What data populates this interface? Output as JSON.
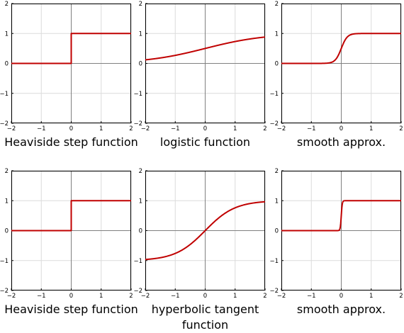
{
  "figure": {
    "colors": {
      "curve": "#c00000",
      "grid": "#dcdcdc",
      "axis": "#808080",
      "frame": "#000000"
    }
  },
  "chart_data": [
    {
      "type": "line",
      "caption": "Heaviside step function",
      "function": "heaviside",
      "xlim": [
        -2,
        2
      ],
      "ylim": [
        -2,
        2
      ],
      "xticks": [
        -2,
        -1,
        0,
        1,
        2
      ],
      "yticks": [
        -2,
        -1,
        0,
        1,
        2
      ],
      "xtick_labels": [
        "−2",
        "−1",
        "0",
        "1",
        "2"
      ],
      "ytick_labels": [
        "−2",
        "−1",
        "0",
        "1",
        "2"
      ],
      "grid": true,
      "series": [
        {
          "x": [
            -2,
            0,
            0,
            2
          ],
          "y": [
            0,
            0,
            1,
            1
          ]
        }
      ]
    },
    {
      "type": "line",
      "caption": "logistic function",
      "function": "logistic",
      "xlim": [
        -2,
        2
      ],
      "ylim": [
        -2,
        2
      ],
      "xticks": [
        -2,
        -1,
        0,
        1,
        2
      ],
      "yticks": [
        -2,
        -1,
        0,
        1,
        2
      ],
      "xtick_labels": [
        "−2",
        "−1",
        "0",
        "1",
        "2"
      ],
      "ytick_labels": [
        "−2",
        "−1",
        "0",
        "1",
        "2"
      ],
      "grid": true,
      "series": [
        {
          "x": [
            -2,
            -1,
            0,
            1,
            2
          ],
          "y": [
            0.12,
            0.27,
            0.5,
            0.73,
            0.88
          ]
        }
      ]
    },
    {
      "type": "line",
      "caption": "smooth approx.",
      "function": "logistic_steep",
      "steepness": 10,
      "xlim": [
        -2,
        2
      ],
      "ylim": [
        -2,
        2
      ],
      "xticks": [
        -2,
        -1,
        0,
        1,
        2
      ],
      "yticks": [
        -2,
        -1,
        0,
        1,
        2
      ],
      "xtick_labels": [
        "−2",
        "−1",
        "0",
        "1",
        "2"
      ],
      "ytick_labels": [
        "−2",
        "−1",
        "0",
        "1",
        "2"
      ],
      "grid": true,
      "series": [
        {
          "x": [
            -2,
            -0.5,
            -0.2,
            0,
            0.2,
            0.5,
            2
          ],
          "y": [
            0,
            0.01,
            0.12,
            0.5,
            0.88,
            0.99,
            1
          ]
        }
      ]
    },
    {
      "type": "line",
      "caption": "Heaviside step function",
      "function": "heaviside",
      "xlim": [
        -2,
        2
      ],
      "ylim": [
        -2,
        2
      ],
      "xticks": [
        -2,
        -1,
        0,
        1,
        2
      ],
      "yticks": [
        -2,
        -1,
        0,
        1,
        2
      ],
      "xtick_labels": [
        "−2",
        "−1",
        "0",
        "1",
        "2"
      ],
      "ytick_labels": [
        "−2",
        "−1",
        "0",
        "1",
        "2"
      ],
      "grid": true,
      "series": [
        {
          "x": [
            -2,
            0,
            0,
            2
          ],
          "y": [
            0,
            0,
            1,
            1
          ]
        }
      ]
    },
    {
      "type": "line",
      "caption": "hyperbolic tangent\nfunction",
      "function": "tanh",
      "xlim": [
        -2,
        2
      ],
      "ylim": [
        -2,
        2
      ],
      "xticks": [
        -2,
        -1,
        0,
        1,
        2
      ],
      "yticks": [
        -2,
        -1,
        0,
        1,
        2
      ],
      "xtick_labels": [
        "−2",
        "−1",
        "0",
        "1",
        "2"
      ],
      "ytick_labels": [
        "−2",
        "−1",
        "0",
        "1",
        "2"
      ],
      "grid": true,
      "series": [
        {
          "x": [
            -2,
            -1,
            0,
            1,
            2
          ],
          "y": [
            -0.96,
            -0.76,
            0,
            0.76,
            0.96
          ]
        }
      ]
    },
    {
      "type": "line",
      "caption": "smooth approx.",
      "function": "tanh_steep",
      "steepness": 30,
      "xlim": [
        -2,
        2
      ],
      "ylim": [
        -2,
        2
      ],
      "xticks": [
        -2,
        -1,
        0,
        1,
        2
      ],
      "yticks": [
        -2,
        -1,
        0,
        1,
        2
      ],
      "xtick_labels": [
        "−2",
        "−1",
        "0",
        "1",
        "2"
      ],
      "ytick_labels": [
        "−2",
        "−1",
        "0",
        "1",
        "2"
      ],
      "grid": true,
      "series": [
        {
          "x": [
            -2,
            -0.1,
            0,
            0.1,
            2
          ],
          "y": [
            0,
            0.05,
            0.5,
            0.95,
            1
          ]
        }
      ]
    }
  ]
}
